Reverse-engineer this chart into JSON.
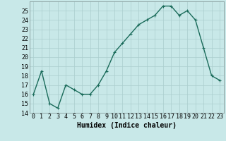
{
  "x": [
    0,
    1,
    2,
    3,
    4,
    5,
    6,
    7,
    8,
    9,
    10,
    11,
    12,
    13,
    14,
    15,
    16,
    17,
    18,
    19,
    20,
    21,
    22,
    23
  ],
  "y": [
    16,
    18.5,
    15,
    14.5,
    17,
    16.5,
    16,
    16,
    17,
    18.5,
    20.5,
    21.5,
    22.5,
    23.5,
    24,
    24.5,
    25.5,
    25.5,
    24.5,
    25,
    24,
    21,
    18,
    17.5
  ],
  "line_color": "#1a6b5a",
  "bg_color": "#c8e8e8",
  "grid_color": "#aacece",
  "xlabel": "Humidex (Indice chaleur)",
  "xlim": [
    -0.5,
    23.5
  ],
  "ylim": [
    14,
    26
  ],
  "yticks": [
    14,
    15,
    16,
    17,
    18,
    19,
    20,
    21,
    22,
    23,
    24,
    25
  ],
  "xticks": [
    0,
    1,
    2,
    3,
    4,
    5,
    6,
    7,
    8,
    9,
    10,
    11,
    12,
    13,
    14,
    15,
    16,
    17,
    18,
    19,
    20,
    21,
    22,
    23
  ],
  "marker": "+",
  "marker_size": 3,
  "line_width": 1.0,
  "tick_fontsize": 6,
  "xlabel_fontsize": 7
}
